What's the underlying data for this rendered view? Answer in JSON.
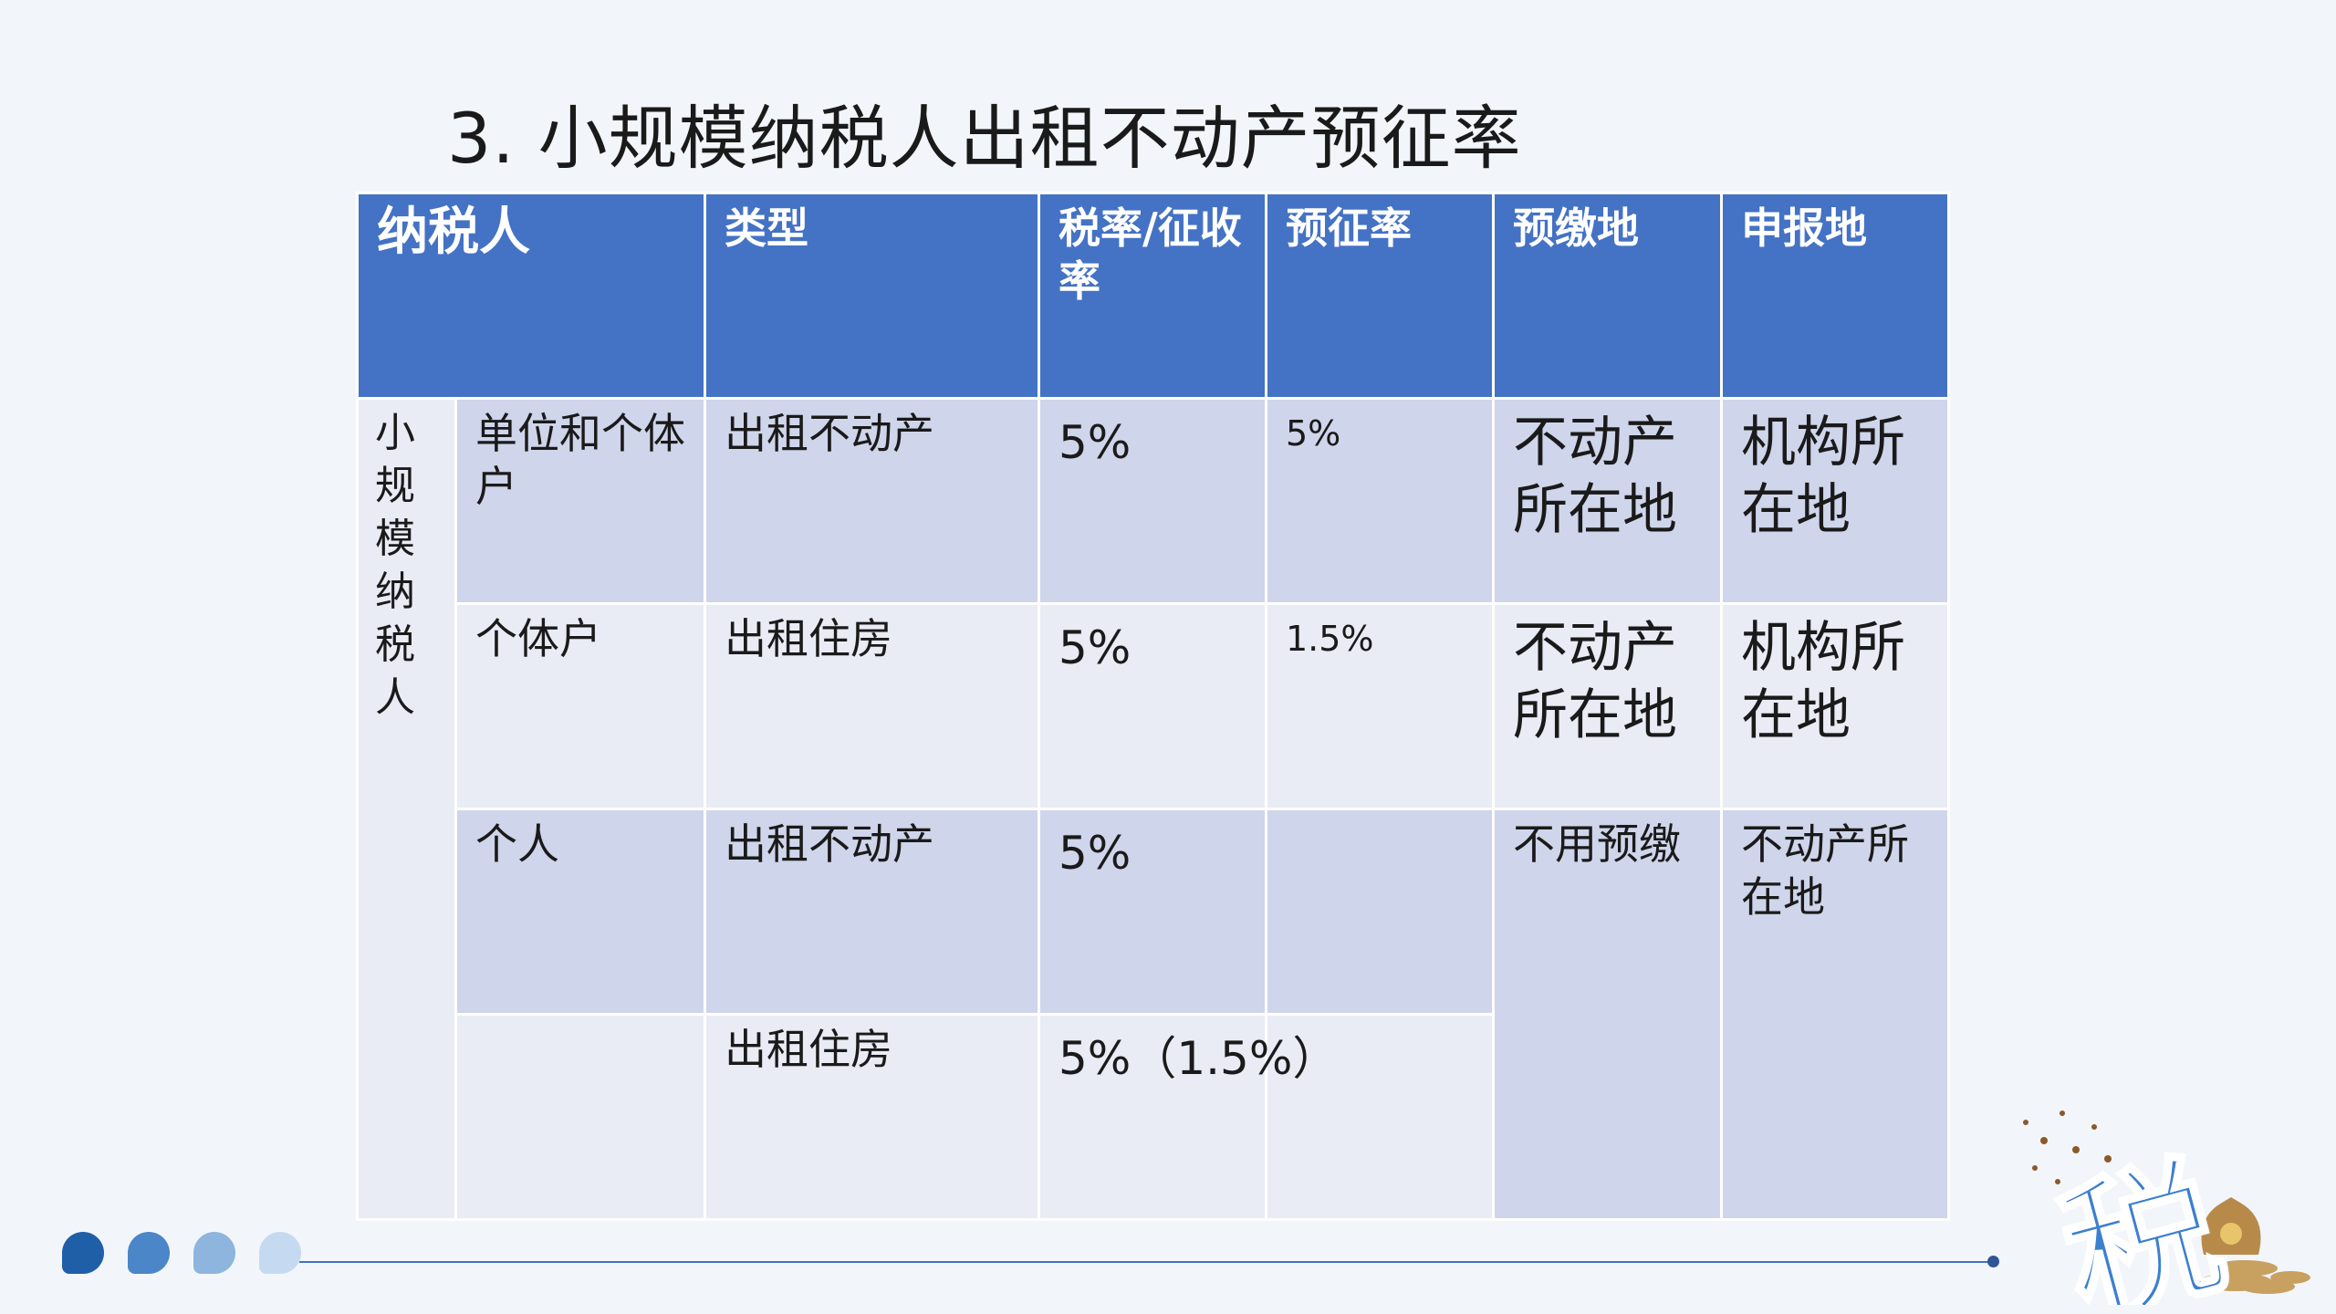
{
  "title": "3. 小规模纳税人出租不动产预征率",
  "table": {
    "headers": [
      "纳税人",
      "类型",
      "税率/征收率",
      "预征率",
      "预缴地",
      "申报地"
    ],
    "group_label": "小规模纳税人",
    "rows": [
      {
        "who": "单位和个体户",
        "type": "出租不动产",
        "rate": "5%",
        "prepay_rate": "5%",
        "prepay_place": "不动产所在地",
        "declare_place": "机构所在地"
      },
      {
        "who": "个体户",
        "type": "出租住房",
        "rate": "5%",
        "prepay_rate": "1.5%",
        "prepay_place": "不动产所在地",
        "declare_place": "机构所在地"
      },
      {
        "who": "个人",
        "type": "出租不动产",
        "rate": "5%",
        "prepay_rate": "",
        "prepay_place": "不用预缴",
        "declare_place": "不动产所在地"
      },
      {
        "who": "",
        "type": "出租住房",
        "rate": "5%（1.5%）",
        "prepay_rate": ""
      }
    ]
  },
  "decor": {
    "logo_text": "税",
    "colors": {
      "header": "#4472c4",
      "row_dark": "#cfd5ea",
      "row_light": "#e9ebf5",
      "line": "#4472c4"
    },
    "dots": [
      "#1f5fa8",
      "#4a86c8",
      "#8db5de",
      "#c5daf0"
    ]
  }
}
